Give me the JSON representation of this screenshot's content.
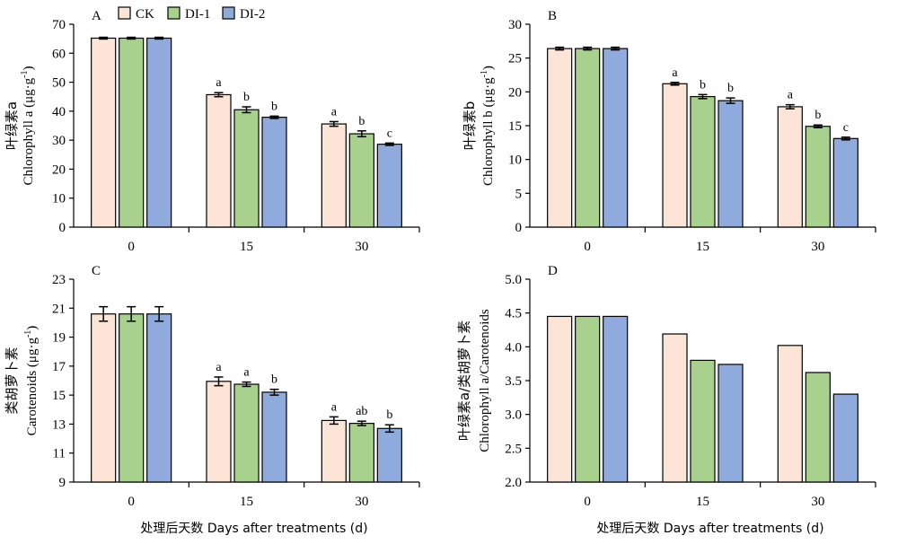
{
  "colors": {
    "CK": "#fce4d6",
    "DI-1": "#a9d18e",
    "DI-2": "#8faadc"
  },
  "legend": [
    "CK",
    "DI-1",
    "DI-2"
  ],
  "x_title": "处理后天数 Days after treatments (d)",
  "chart_data": [
    {
      "type": "bar",
      "id": "A",
      "panel": "A",
      "categories": [
        "0",
        "15",
        "30"
      ],
      "ylabel_cn": "叶绿素a",
      "ylabel_en": "Chlorophyll a (μg·g",
      "ylabel_sup": "-1",
      "ylabel_close": ")",
      "ylim": [
        0,
        70
      ],
      "yticks": [
        "0",
        "10",
        "20",
        "30",
        "40",
        "50",
        "60",
        "70"
      ],
      "series": [
        {
          "name": "CK",
          "values": [
            65.2,
            45.7,
            35.6
          ],
          "errors": [
            0.3,
            0.7,
            0.8
          ],
          "letters": [
            "",
            "a",
            "a"
          ]
        },
        {
          "name": "DI-1",
          "values": [
            65.2,
            40.5,
            32.2
          ],
          "errors": [
            0.3,
            1.0,
            1.0
          ],
          "letters": [
            "",
            "b",
            "b"
          ]
        },
        {
          "name": "DI-2",
          "values": [
            65.2,
            37.9,
            28.6
          ],
          "errors": [
            0.3,
            0.4,
            0.4
          ],
          "letters": [
            "",
            "b",
            "c"
          ]
        }
      ]
    },
    {
      "type": "bar",
      "id": "B",
      "panel": "B",
      "categories": [
        "0",
        "15",
        "30"
      ],
      "ylabel_cn": "叶绿素b",
      "ylabel_en": "Chlorophyll b (μg·g",
      "ylabel_sup": "-1",
      "ylabel_close": ")",
      "ylim": [
        0,
        30
      ],
      "yticks": [
        "0",
        "5",
        "10",
        "15",
        "20",
        "25",
        "30"
      ],
      "series": [
        {
          "name": "CK",
          "values": [
            26.4,
            21.2,
            17.8
          ],
          "errors": [
            0.2,
            0.2,
            0.3
          ],
          "letters": [
            "",
            "a",
            "a"
          ]
        },
        {
          "name": "DI-1",
          "values": [
            26.4,
            19.3,
            14.9
          ],
          "errors": [
            0.2,
            0.3,
            0.2
          ],
          "letters": [
            "",
            "b",
            "b"
          ]
        },
        {
          "name": "DI-2",
          "values": [
            26.4,
            18.7,
            13.1
          ],
          "errors": [
            0.2,
            0.4,
            0.2
          ],
          "letters": [
            "",
            "b",
            "c"
          ]
        }
      ]
    },
    {
      "type": "bar",
      "id": "C",
      "panel": "C",
      "categories": [
        "0",
        "15",
        "30"
      ],
      "ylabel_cn": "类胡萝卜素",
      "ylabel_en": "Carotenoids (μg·g",
      "ylabel_sup": "-1",
      "ylabel_close": ")",
      "ylim": [
        9,
        23
      ],
      "yticks": [
        "9",
        "11",
        "13",
        "15",
        "17",
        "19",
        "21",
        "23"
      ],
      "series": [
        {
          "name": "CK",
          "values": [
            20.6,
            15.95,
            13.25
          ],
          "errors": [
            0.5,
            0.3,
            0.25
          ],
          "letters": [
            "",
            "a",
            "a"
          ]
        },
        {
          "name": "DI-1",
          "values": [
            20.6,
            15.75,
            13.05
          ],
          "errors": [
            0.5,
            0.15,
            0.15
          ],
          "letters": [
            "",
            "a",
            "ab"
          ]
        },
        {
          "name": "DI-2",
          "values": [
            20.6,
            15.2,
            12.7
          ],
          "errors": [
            0.5,
            0.2,
            0.25
          ],
          "letters": [
            "",
            "b",
            "b"
          ]
        }
      ]
    },
    {
      "type": "bar",
      "id": "D",
      "panel": "D",
      "categories": [
        "0",
        "15",
        "30"
      ],
      "ylabel_cn": "叶绿素a/类胡萝卜素",
      "ylabel_en": "Chlorophyll a/Carotenoids",
      "ylabel_sup": "",
      "ylabel_close": "",
      "ylim": [
        2.0,
        5.0
      ],
      "yticks": [
        "2.0",
        "2.5",
        "3.0",
        "3.5",
        "4.0",
        "4.5",
        "5.0"
      ],
      "series": [
        {
          "name": "CK",
          "values": [
            4.45,
            4.19,
            4.02
          ],
          "errors": [
            0,
            0,
            0
          ],
          "letters": [
            "",
            "",
            ""
          ]
        },
        {
          "name": "DI-1",
          "values": [
            4.45,
            3.8,
            3.62
          ],
          "errors": [
            0,
            0,
            0
          ],
          "letters": [
            "",
            "",
            ""
          ]
        },
        {
          "name": "DI-2",
          "values": [
            4.45,
            3.74,
            3.3
          ],
          "errors": [
            0,
            0,
            0
          ],
          "letters": [
            "",
            "",
            ""
          ]
        }
      ]
    }
  ]
}
